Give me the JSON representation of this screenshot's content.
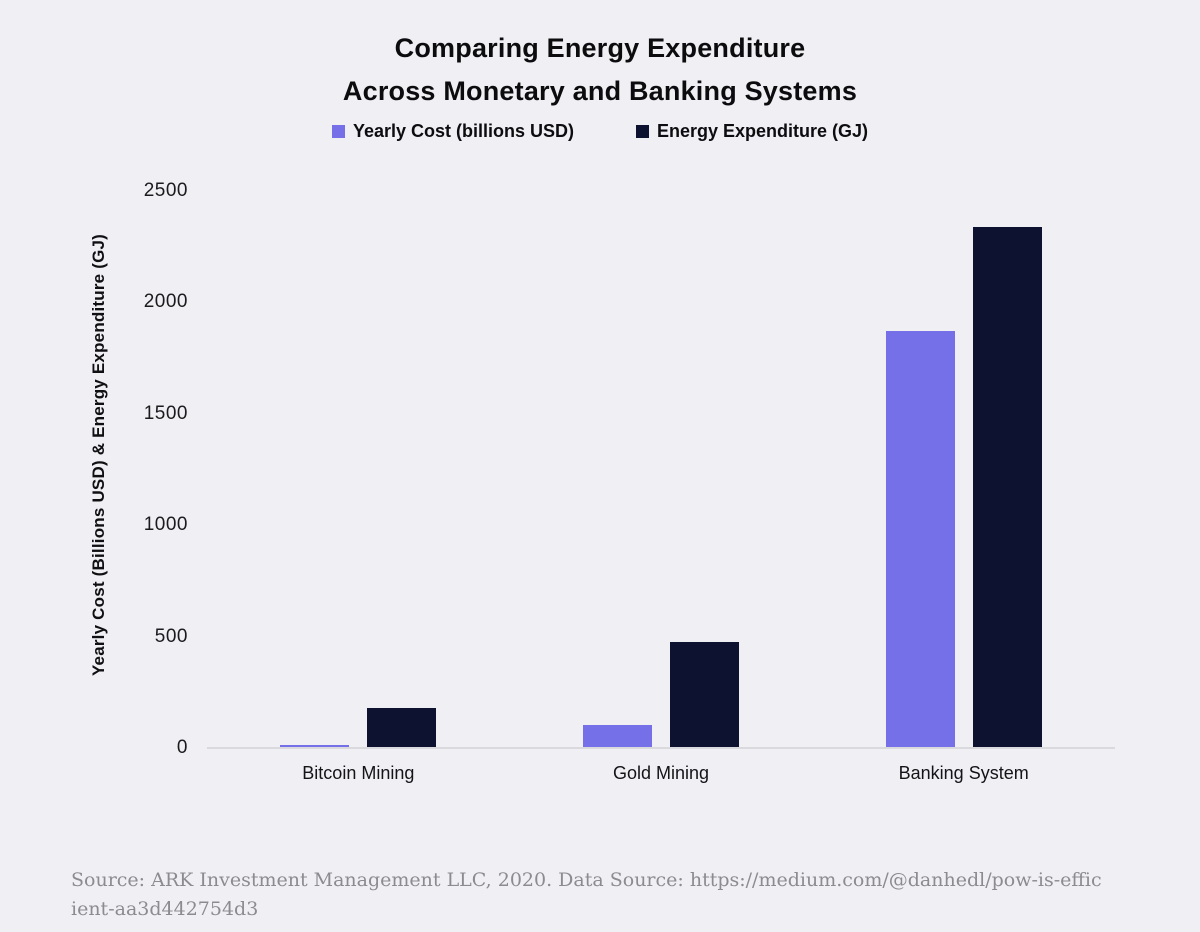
{
  "page": {
    "background": "#F0F0F4"
  },
  "title": {
    "line1": "Comparing Energy Expenditure",
    "line2": "Across Monetary and Banking Systems"
  },
  "chart_data": {
    "type": "bar",
    "title": "Comparing Energy Expenditure Across Monetary and Banking Systems",
    "categories": [
      "Bitcoin Mining",
      "Gold Mining",
      "Banking System"
    ],
    "series": [
      {
        "name": "Yearly Cost (billions USD)",
        "color": "#7670E8",
        "values": [
          15,
          105,
          1870
        ]
      },
      {
        "name": "Energy Expenditure (GJ)",
        "color": "#0D1230",
        "values": [
          180,
          475,
          2340
        ]
      }
    ],
    "xlabel": "",
    "ylabel": "Yearly Cost (Billions USD) & Energy Expenditure (GJ)",
    "ylim": [
      0,
      2500
    ],
    "yticks": [
      0,
      500,
      1000,
      1500,
      2000,
      2500
    ],
    "grid": false,
    "legend_position": "top"
  },
  "source": {
    "line1": "Source: ARK Investment Management LLC, 2020. Data Source: https://medium.com/@danhedl/pow-is-effic",
    "line2": "ient-aa3d442754d3"
  },
  "colors": {
    "background": "#F0F0F4",
    "axis_line": "#D9D9DE",
    "title_text": "#0C0C0E",
    "tick_text": "#1B1B1E",
    "footer_text": "#8B8B90"
  }
}
